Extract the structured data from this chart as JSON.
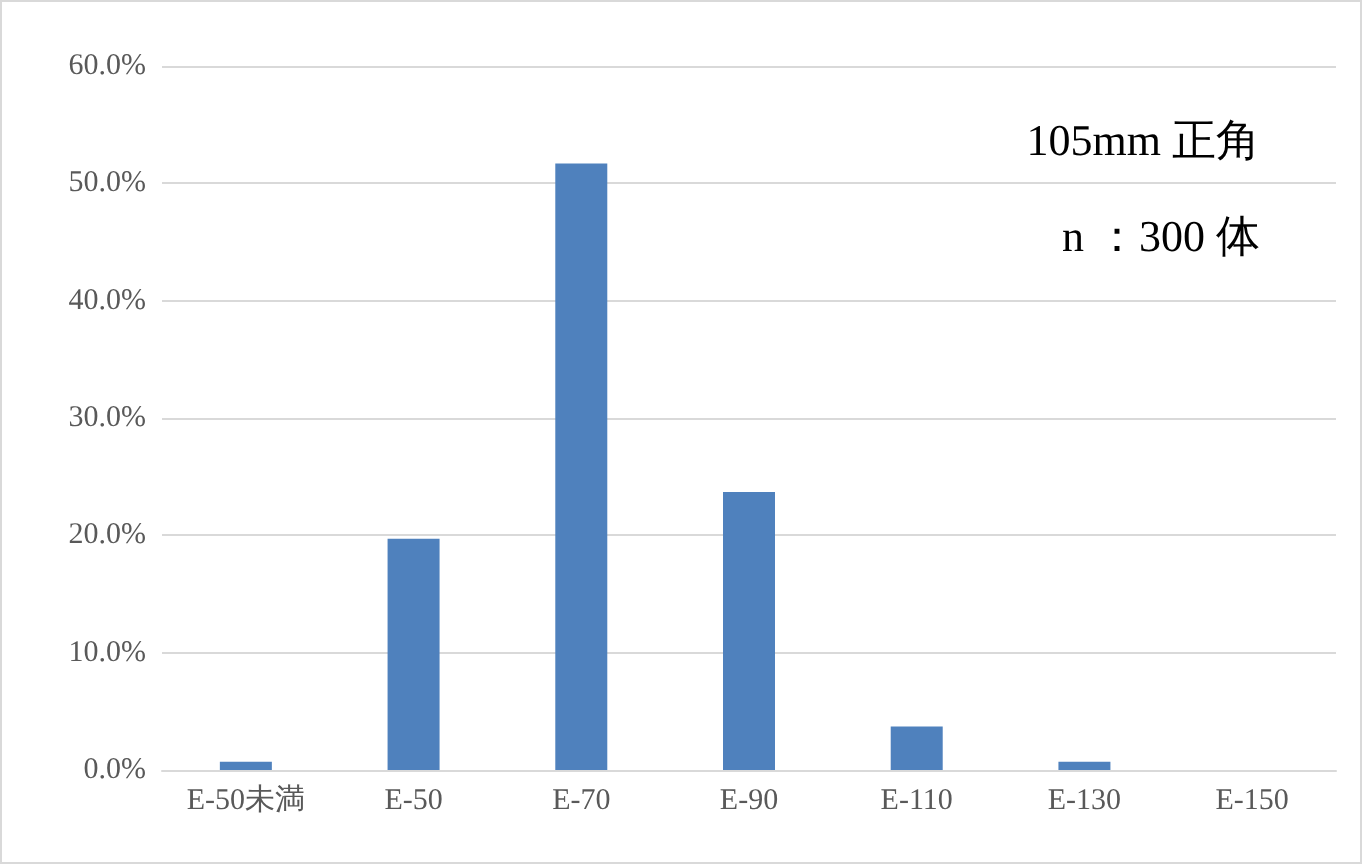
{
  "chart_data": {
    "type": "bar",
    "categories": [
      "E-50未満",
      "E-50",
      "E-70",
      "E-90",
      "E-110",
      "E-130",
      "E-150"
    ],
    "values": [
      0.7,
      19.7,
      51.7,
      23.7,
      3.7,
      0.7,
      0
    ],
    "color": "#4f81bd",
    "ylim": [
      0,
      60
    ],
    "yticks": [
      {
        "value": 0,
        "label": "0.0%"
      },
      {
        "value": 10,
        "label": "10.0%"
      },
      {
        "value": 20,
        "label": "20.0%"
      },
      {
        "value": 30,
        "label": "30.0%"
      },
      {
        "value": 40,
        "label": "40.0%"
      },
      {
        "value": 50,
        "label": "50.0%"
      },
      {
        "value": 60,
        "label": "60.0%"
      }
    ],
    "grid": "y",
    "annotations": [
      "105mm 正角",
      "n ：300 体"
    ]
  }
}
